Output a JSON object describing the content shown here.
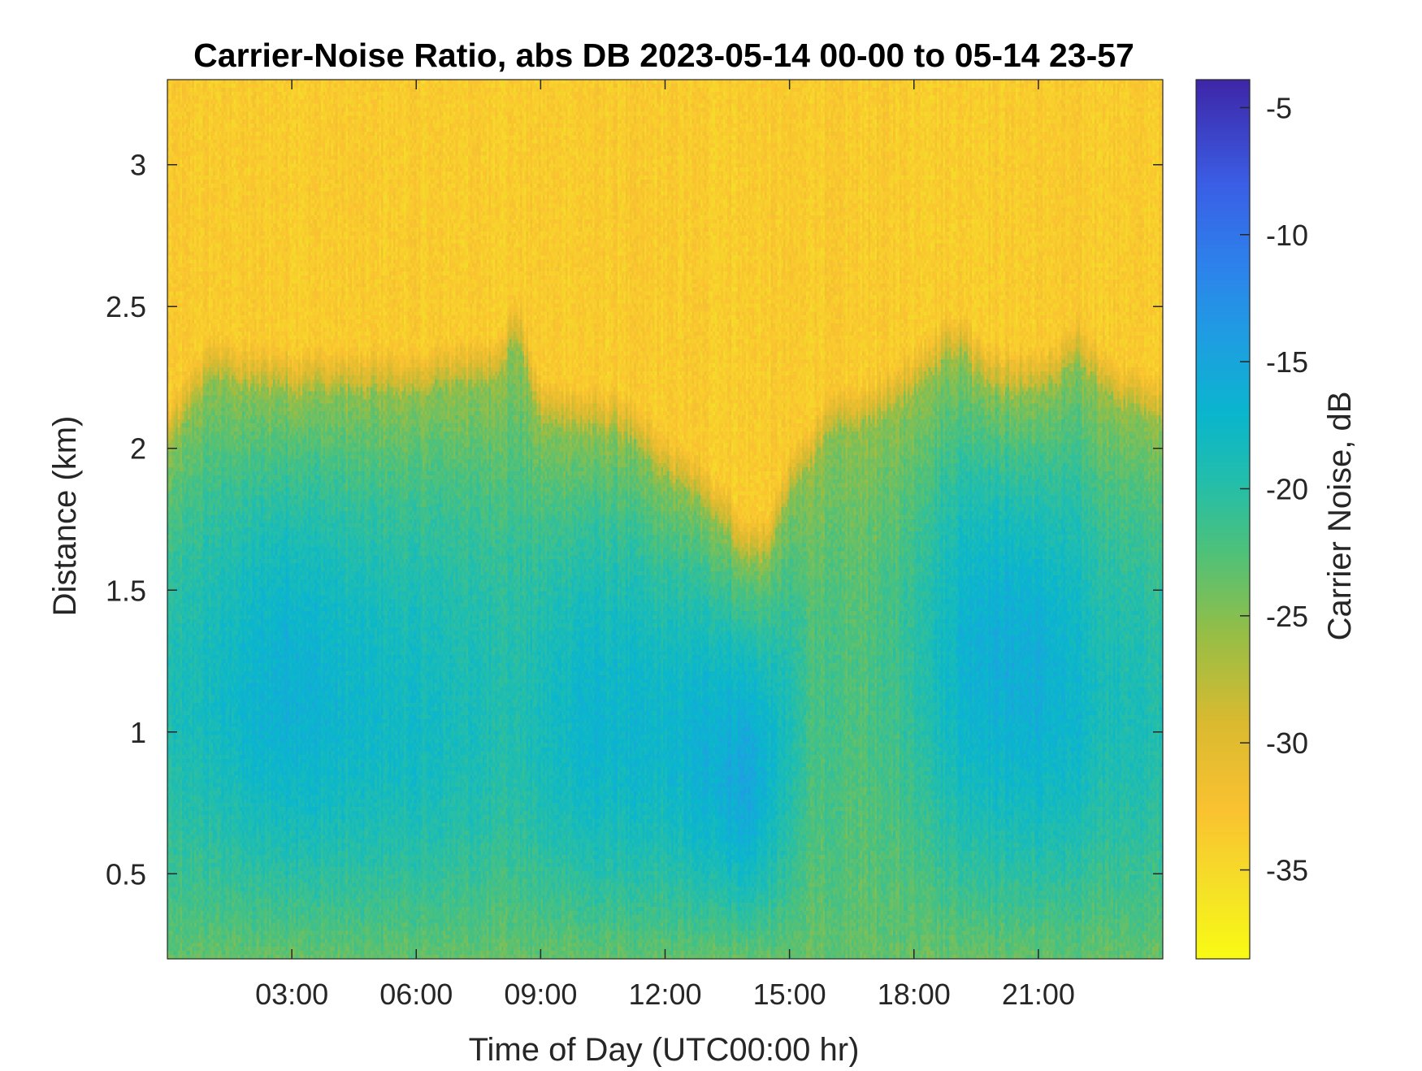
{
  "chart_data": {
    "type": "heatmap",
    "title": "Carrier-Noise Ratio, abs DB 2023-05-14 00-00 to 05-14 23-57",
    "xlabel": "Time of Day (UTC00:00 hr)",
    "ylabel": "Distance (km)",
    "colorbar_label": "Carrier Noise, dB",
    "x_unit": "hours",
    "xlim": [
      0,
      24
    ],
    "ylim": [
      0.2,
      3.3
    ],
    "clim": [
      -38.5,
      -3.9
    ],
    "colormap": "parula",
    "colormap_direction": "reversed (yellow = lowest, dark blue = highest)",
    "x_ticks": [
      {
        "value": 3,
        "label": "03:00"
      },
      {
        "value": 6,
        "label": "06:00"
      },
      {
        "value": 9,
        "label": "09:00"
      },
      {
        "value": 12,
        "label": "12:00"
      },
      {
        "value": 15,
        "label": "15:00"
      },
      {
        "value": 18,
        "label": "18:00"
      },
      {
        "value": 21,
        "label": "21:00"
      }
    ],
    "y_ticks": [
      {
        "value": 0.5,
        "label": "0.5"
      },
      {
        "value": 1,
        "label": "1"
      },
      {
        "value": 1.5,
        "label": "1.5"
      },
      {
        "value": 2,
        "label": "2"
      },
      {
        "value": 2.5,
        "label": "2.5"
      },
      {
        "value": 3,
        "label": "3"
      }
    ],
    "colorbar_ticks": [
      {
        "value": -5,
        "label": "-5"
      },
      {
        "value": -10,
        "label": "-10"
      },
      {
        "value": -15,
        "label": "-15"
      },
      {
        "value": -20,
        "label": "-20"
      },
      {
        "value": -25,
        "label": "-25"
      },
      {
        "value": -30,
        "label": "-30"
      },
      {
        "value": -35,
        "label": "-35"
      }
    ],
    "noise_floor_db": -33.5,
    "signal_top_km": [
      [
        0.0,
        2.0
      ],
      [
        1.0,
        2.25
      ],
      [
        3.0,
        2.2
      ],
      [
        6.0,
        2.2
      ],
      [
        8.0,
        2.25
      ],
      [
        8.4,
        2.4
      ],
      [
        9.0,
        2.1
      ],
      [
        11.0,
        2.05
      ],
      [
        12.0,
        1.9
      ],
      [
        13.0,
        1.8
      ],
      [
        14.0,
        1.6
      ],
      [
        14.5,
        1.62
      ],
      [
        15.0,
        1.85
      ],
      [
        16.0,
        2.05
      ],
      [
        17.0,
        2.1
      ],
      [
        18.0,
        2.2
      ],
      [
        19.0,
        2.35
      ],
      [
        20.0,
        2.2
      ],
      [
        21.0,
        2.2
      ],
      [
        22.0,
        2.3
      ],
      [
        23.0,
        2.15
      ],
      [
        24.0,
        2.1
      ]
    ],
    "core_min_db": [
      [
        0.0,
        -19.5
      ],
      [
        3.0,
        -16.0
      ],
      [
        4.5,
        -17.5
      ],
      [
        6.0,
        -18.0
      ],
      [
        8.5,
        -19.5
      ],
      [
        10.0,
        -17.0
      ],
      [
        12.0,
        -17.5
      ],
      [
        14.0,
        -15.0
      ],
      [
        15.5,
        -21.5
      ],
      [
        16.5,
        -22.5
      ],
      [
        17.5,
        -21.5
      ],
      [
        18.5,
        -18.5
      ],
      [
        19.5,
        -16.0
      ],
      [
        21.0,
        -16.0
      ],
      [
        22.5,
        -18.5
      ],
      [
        24.0,
        -19.5
      ]
    ],
    "core_center_km": [
      [
        0.0,
        1.1
      ],
      [
        3.0,
        1.1
      ],
      [
        6.0,
        1.0
      ],
      [
        9.0,
        1.0
      ],
      [
        12.0,
        0.95
      ],
      [
        14.0,
        0.8
      ],
      [
        15.5,
        1.0
      ],
      [
        18.0,
        1.2
      ],
      [
        20.0,
        1.25
      ],
      [
        22.0,
        1.1
      ],
      [
        24.0,
        1.0
      ]
    ],
    "near_ground_db": -23.5
  }
}
